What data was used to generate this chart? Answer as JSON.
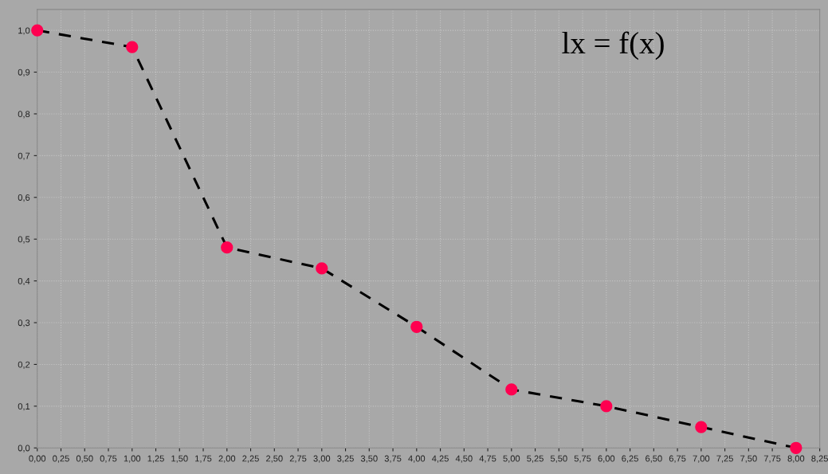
{
  "chart_data": {
    "type": "line",
    "x": [
      0,
      1,
      2,
      3,
      4,
      5,
      6,
      7,
      8
    ],
    "series": [
      {
        "color": "#ff0050",
        "values": [
          1.0,
          0.96,
          0.48,
          0.43,
          0.29,
          0.14,
          0.1,
          0.05,
          0.0
        ]
      }
    ],
    "marker": "circle",
    "line_style": "dashed",
    "grid": true,
    "annotations": [
      "lx = f(x)"
    ],
    "xlim": [
      0,
      8.25
    ],
    "ylim": [
      0,
      1.05
    ],
    "xticks": [
      {
        "value": 0,
        "label": "0,00"
      },
      {
        "value": 0.25,
        "label": "0,25"
      },
      {
        "value": 0.5,
        "label": "0,50"
      },
      {
        "value": 0.75,
        "label": "0,75"
      },
      {
        "value": 1,
        "label": "1,00"
      },
      {
        "value": 1.25,
        "label": "1,25"
      },
      {
        "value": 1.5,
        "label": "1,50"
      },
      {
        "value": 1.75,
        "label": "1,75"
      },
      {
        "value": 2,
        "label": "2,00"
      },
      {
        "value": 2.25,
        "label": "2,25"
      },
      {
        "value": 2.5,
        "label": "2,50"
      },
      {
        "value": 2.75,
        "label": "2,75"
      },
      {
        "value": 3,
        "label": "3,00"
      },
      {
        "value": 3.25,
        "label": "3,25"
      },
      {
        "value": 3.5,
        "label": "3,50"
      },
      {
        "value": 3.75,
        "label": "3,75"
      },
      {
        "value": 4,
        "label": "4,00"
      },
      {
        "value": 4.25,
        "label": "4,25"
      },
      {
        "value": 4.5,
        "label": "4,50"
      },
      {
        "value": 4.75,
        "label": "4,75"
      },
      {
        "value": 5,
        "label": "5,00"
      },
      {
        "value": 5.25,
        "label": "5,25"
      },
      {
        "value": 5.5,
        "label": "5,50"
      },
      {
        "value": 5.75,
        "label": "5,75"
      },
      {
        "value": 6,
        "label": "6,00"
      },
      {
        "value": 6.25,
        "label": "6,25"
      },
      {
        "value": 6.5,
        "label": "6,50"
      },
      {
        "value": 6.75,
        "label": "6,75"
      },
      {
        "value": 7,
        "label": "7,00"
      },
      {
        "value": 7.25,
        "label": "7,25"
      },
      {
        "value": 7.5,
        "label": "7,50"
      },
      {
        "value": 7.75,
        "label": "7,75"
      },
      {
        "value": 8,
        "label": "8,00"
      },
      {
        "value": 8.25,
        "label": "8,25"
      }
    ],
    "yticks": [
      {
        "value": 0,
        "label": "0,0"
      },
      {
        "value": 0.1,
        "label": "0,1"
      },
      {
        "value": 0.2,
        "label": "0,2"
      },
      {
        "value": 0.3,
        "label": "0,3"
      },
      {
        "value": 0.4,
        "label": "0,4"
      },
      {
        "value": 0.5,
        "label": "0,5"
      },
      {
        "value": 0.6,
        "label": "0,6"
      },
      {
        "value": 0.7,
        "label": "0,7"
      },
      {
        "value": 0.8,
        "label": "0,8"
      },
      {
        "value": 0.9,
        "label": "0,9"
      },
      {
        "value": 1.0,
        "label": "1,0"
      }
    ]
  }
}
